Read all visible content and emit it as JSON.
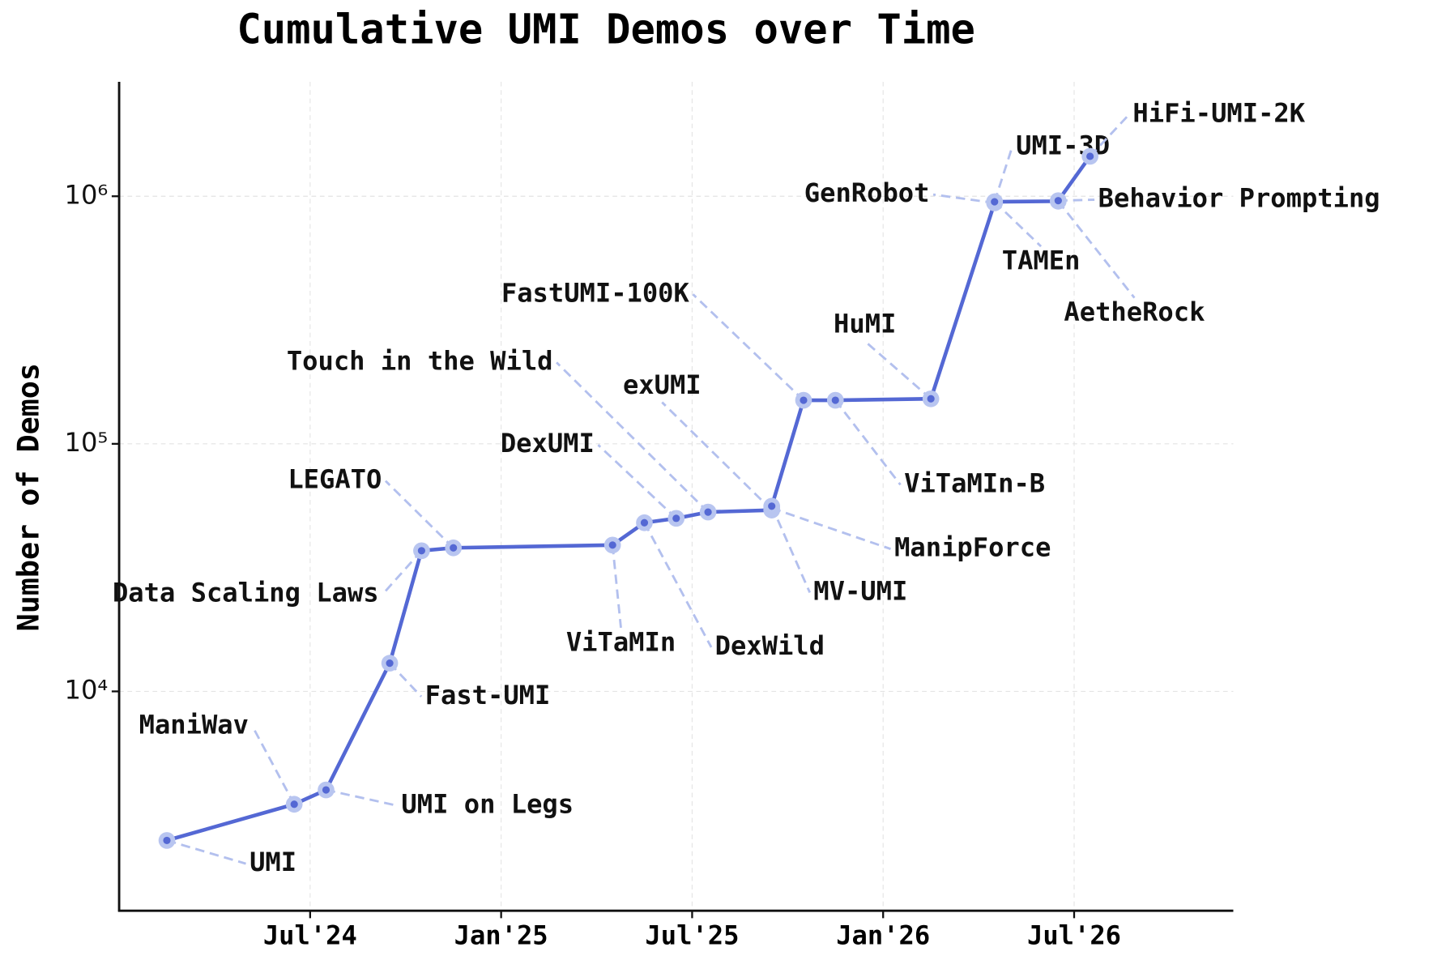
{
  "chart_data": {
    "type": "line",
    "title": "Cumulative UMI Demos over Time",
    "ylabel": "Number of Demos",
    "x": [
      "2024-02",
      "2024-06",
      "2024-07",
      "2024-09",
      "2024-10",
      "2024-11",
      "2025-04",
      "2025-05",
      "2025-06",
      "2025-07",
      "2025-09",
      "2025-09",
      "2025-09",
      "2025-10",
      "2025-11",
      "2026-02",
      "2026-04",
      "2026-04",
      "2026-04",
      "2026-06",
      "2026-06",
      "2026-07"
    ],
    "values": [
      2500,
      3500,
      4000,
      13000,
      37000,
      38000,
      39000,
      48000,
      50000,
      53000,
      54000,
      55000,
      56000,
      150000,
      150000,
      152000,
      940000,
      950000,
      950000,
      955000,
      960000,
      1450000
    ],
    "point_labels": [
      "UMI",
      "ManiWav",
      "UMI on Legs",
      "Fast-UMI",
      "Data Scaling Laws",
      "LEGATO",
      "ViTaMIn",
      "DexWild",
      "DexUMI",
      "Touch in the Wild",
      "exUMI",
      "ManipForce",
      "MV-UMI",
      "FastUMI-100K",
      "ViTaMIn-B",
      "HuMI",
      "GenRobot",
      "UMI-3D",
      "TAMEn",
      "AetheRock",
      "Behavior Prompting",
      "HiFi-UMI-2K"
    ],
    "color": "#5468d4",
    "log_y": true,
    "grid": true,
    "xlim": [
      "2024-01",
      "2026-12"
    ],
    "ylim": [
      1300,
      2900000
    ],
    "xticks": [
      {
        "value": "2024-07",
        "label": "Jul'24"
      },
      {
        "value": "2025-01",
        "label": "Jan'25"
      },
      {
        "value": "2025-07",
        "label": "Jul'25"
      },
      {
        "value": "2026-01",
        "label": "Jan'26"
      },
      {
        "value": "2026-07",
        "label": "Jul'26"
      }
    ],
    "yticks": [
      {
        "value": 10000,
        "label": "10⁴"
      },
      {
        "value": 100000,
        "label": "10⁵"
      },
      {
        "value": 1000000,
        "label": "10⁶"
      }
    ]
  }
}
